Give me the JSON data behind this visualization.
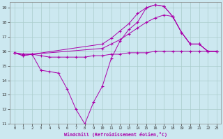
{
  "xlabel": "Windchill (Refroidissement éolien,°C)",
  "background_color": "#cce8f0",
  "grid_color": "#aacccc",
  "line_color": "#aa00aa",
  "xlim": [
    -0.5,
    23.5
  ],
  "ylim": [
    11,
    19.4
  ],
  "yticks": [
    11,
    12,
    13,
    14,
    15,
    16,
    17,
    18,
    19
  ],
  "xticks": [
    0,
    1,
    2,
    3,
    4,
    5,
    6,
    7,
    8,
    9,
    10,
    11,
    12,
    13,
    14,
    15,
    16,
    17,
    18,
    19,
    20,
    21,
    22,
    23
  ],
  "series": [
    {
      "x": [
        0,
        1,
        2,
        3,
        4,
        5,
        6,
        7,
        8,
        9,
        10,
        11,
        12,
        13,
        14,
        15,
        16,
        17,
        18,
        19,
        20,
        21,
        22,
        23
      ],
      "y": [
        15.9,
        15.7,
        15.8,
        15.7,
        15.6,
        15.6,
        15.6,
        15.6,
        15.6,
        15.7,
        15.7,
        15.8,
        15.8,
        15.9,
        15.9,
        15.9,
        16.0,
        16.0,
        16.0,
        16.0,
        16.0,
        16.0,
        16.0,
        16.0
      ]
    },
    {
      "x": [
        0,
        1,
        2,
        3,
        4,
        5,
        6,
        7,
        8,
        9,
        10,
        11,
        12,
        13,
        14,
        15,
        16,
        17,
        18,
        19,
        20,
        21,
        22,
        23
      ],
      "y": [
        15.9,
        15.7,
        15.8,
        14.7,
        14.6,
        14.5,
        13.4,
        12.0,
        11.0,
        12.5,
        13.6,
        15.5,
        16.7,
        17.5,
        18.0,
        19.0,
        19.2,
        19.1,
        18.4,
        17.3,
        16.5,
        16.5,
        16.0,
        16.0
      ]
    },
    {
      "x": [
        0,
        1,
        2,
        10,
        11,
        12,
        13,
        14,
        15,
        16,
        17,
        18,
        19,
        20,
        21,
        22,
        23
      ],
      "y": [
        15.9,
        15.8,
        15.8,
        16.2,
        16.5,
        16.8,
        17.2,
        17.6,
        18.0,
        18.3,
        18.5,
        18.4,
        17.3,
        16.5,
        16.5,
        16.0,
        16.0
      ]
    },
    {
      "x": [
        0,
        1,
        2,
        10,
        11,
        12,
        13,
        14,
        15,
        16,
        17,
        18,
        19,
        20,
        21,
        22,
        23
      ],
      "y": [
        15.9,
        15.8,
        15.8,
        16.5,
        16.9,
        17.4,
        17.9,
        18.6,
        19.0,
        19.2,
        19.1,
        18.4,
        17.3,
        16.5,
        16.5,
        16.0,
        16.0
      ]
    }
  ]
}
